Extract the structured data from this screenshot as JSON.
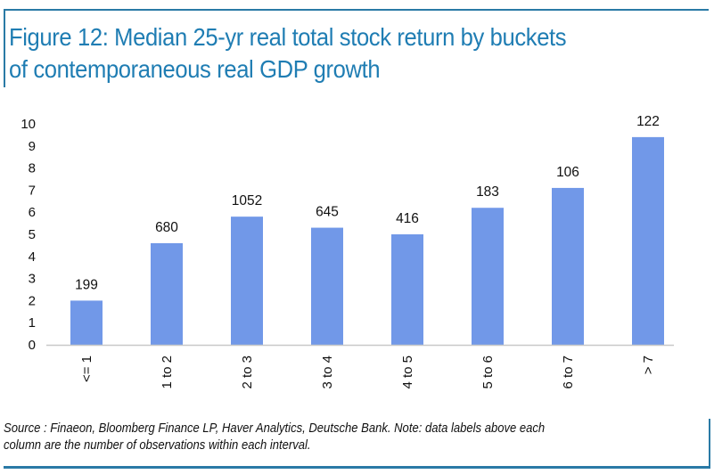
{
  "title": {
    "line1": "Figure 12: Median 25-yr real total stock return by buckets",
    "line2": "of contemporaneous real GDP growth"
  },
  "footnote": {
    "line1": "Source : Finaeon, Bloomberg Finance LP, Haver Analytics, Deutsche Bank. Note: data labels above each",
    "line2": "column are the number of observations within each interval."
  },
  "colors": {
    "frame": "#2a7aa6",
    "title": "#1f7db3",
    "bar": "#7198e8",
    "axis": "#c8c8c8"
  },
  "chart_data": {
    "type": "bar",
    "title": "Figure 12: Median 25-yr real total stock return by buckets of contemporaneous real GDP growth",
    "xlabel": "",
    "ylabel": "",
    "categories": [
      "<= 1",
      "1 to 2",
      "2 to 3",
      "3 to 4",
      "4 to 5",
      "5 to 6",
      "6 to 7",
      "> 7"
    ],
    "values": [
      2.0,
      4.6,
      5.8,
      5.3,
      5.0,
      6.2,
      7.1,
      9.4
    ],
    "data_labels": [
      "199",
      "680",
      "1052",
      "645",
      "416",
      "183",
      "106",
      "122"
    ],
    "data_labels_meaning": "number of observations within each interval",
    "ylim": [
      0,
      10
    ],
    "yticks": [
      0,
      1,
      2,
      3,
      4,
      5,
      6,
      7,
      8,
      9,
      10
    ],
    "grid": false,
    "legend": "none",
    "xtick_rotation": "vertical"
  }
}
